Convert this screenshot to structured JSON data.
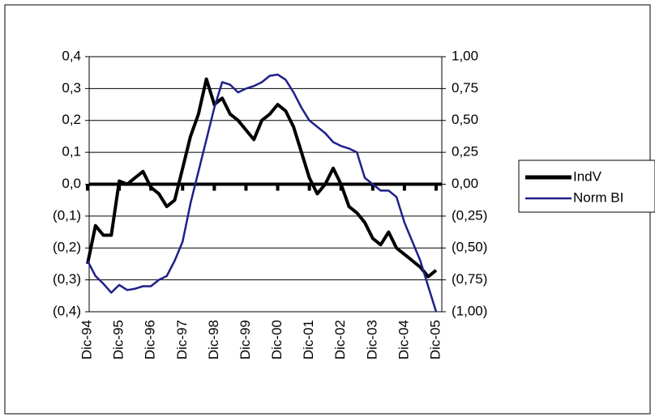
{
  "chart_data": {
    "type": "line",
    "categories": [
      "Dic-94",
      null,
      null,
      null,
      "Dic-95",
      null,
      null,
      null,
      "Dic-96",
      null,
      null,
      null,
      "Dic-97",
      null,
      null,
      null,
      "Dic-98",
      null,
      null,
      null,
      "Dic-99",
      null,
      null,
      null,
      "Dic-00",
      null,
      null,
      null,
      "Dic-01",
      null,
      null,
      null,
      "Dic-02",
      null,
      null,
      null,
      "Dic-03",
      null,
      null,
      null,
      "Dic-04",
      null,
      null,
      null,
      "Dic-05"
    ],
    "series": [
      {
        "name": "IndV",
        "color": "#000000",
        "axis": "y",
        "values": [
          -0.25,
          -0.13,
          -0.16,
          -0.16,
          0.01,
          0.0,
          0.02,
          0.04,
          -0.01,
          -0.03,
          -0.07,
          -0.05,
          0.05,
          0.15,
          0.22,
          0.33,
          0.25,
          0.27,
          0.22,
          0.2,
          0.17,
          0.14,
          0.2,
          0.22,
          0.25,
          0.23,
          0.18,
          0.1,
          0.02,
          -0.03,
          0.0,
          0.05,
          0.0,
          -0.07,
          -0.09,
          -0.12,
          -0.17,
          -0.19,
          -0.15,
          -0.2,
          -0.22,
          -0.24,
          -0.26,
          -0.29,
          -0.27
        ]
      },
      {
        "name": "Norm BI",
        "color": "#1f1f8a",
        "axis": "y2",
        "values": [
          -0.6,
          -0.72,
          -0.78,
          -0.85,
          -0.79,
          -0.83,
          -0.82,
          -0.8,
          -0.8,
          -0.75,
          -0.72,
          -0.6,
          -0.45,
          -0.15,
          0.1,
          0.35,
          0.6,
          0.8,
          0.78,
          0.72,
          0.75,
          0.77,
          0.8,
          0.85,
          0.86,
          0.82,
          0.72,
          0.6,
          0.5,
          0.45,
          0.4,
          0.33,
          0.3,
          0.28,
          0.25,
          0.05,
          0.0,
          -0.05,
          -0.05,
          -0.1,
          -0.3,
          -0.45,
          -0.6,
          -0.8,
          -1.0
        ]
      }
    ],
    "ylim": [
      -0.4,
      0.4
    ],
    "yticks": [
      {
        "value": 0.4,
        "label": "0,4"
      },
      {
        "value": 0.3,
        "label": "0,3"
      },
      {
        "value": 0.2,
        "label": "0,2"
      },
      {
        "value": 0.1,
        "label": "0,1"
      },
      {
        "value": 0,
        "label": "0,0"
      },
      {
        "value": -0.1,
        "label": "(0,1)"
      },
      {
        "value": -0.2,
        "label": "(0,2)"
      },
      {
        "value": -0.3,
        "label": "(0,3)"
      },
      {
        "value": -0.4,
        "label": "(0,4)"
      }
    ],
    "y2lim": [
      -1,
      1
    ],
    "y2ticks": [
      {
        "value": 1,
        "label": "1,00"
      },
      {
        "value": 0.75,
        "label": "0,75"
      },
      {
        "value": 0.5,
        "label": "0,50"
      },
      {
        "value": 0.25,
        "label": "0,25"
      },
      {
        "value": 0,
        "label": "0,00"
      },
      {
        "value": -0.25,
        "label": "(0,25)"
      },
      {
        "value": -0.5,
        "label": "(0,50)"
      },
      {
        "value": -0.75,
        "label": "(0,75)"
      },
      {
        "value": -1,
        "label": "(1,00)"
      }
    ],
    "grid": true,
    "legend": "right"
  }
}
